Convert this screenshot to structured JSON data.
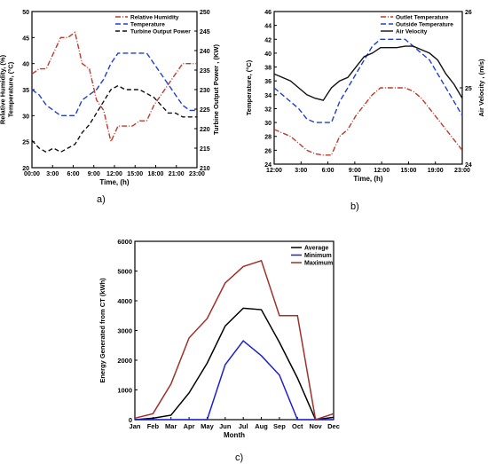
{
  "chart_data": [
    {
      "type": "line",
      "panel_label": "a)",
      "xlabel": "Time, (h)",
      "ylabel_left": "Relative Humidity, (%)\nTemperature, (°C)",
      "ylabel_right": "Turbine Output Power , (KW)",
      "x_ticks": [
        "00:00",
        "3:00",
        "6:00",
        "9:00",
        "12:00",
        "15:00",
        "18:00",
        "21:00",
        "23:00"
      ],
      "x": [
        0,
        1,
        2,
        3,
        4,
        5,
        6,
        7,
        8,
        9,
        10,
        11,
        12,
        13,
        14,
        15,
        16,
        17,
        18,
        19,
        20,
        21,
        22,
        23
      ],
      "ylim_left": [
        20,
        50
      ],
      "ylim_right": [
        210,
        250
      ],
      "yticks_left": [
        20,
        25,
        30,
        35,
        40,
        45,
        50
      ],
      "yticks_right": [
        210,
        215,
        220,
        225,
        230,
        235,
        240,
        245,
        250
      ],
      "series": [
        {
          "name": "Relative Humidity",
          "axis": "left",
          "color": "#c0392b",
          "dash": "6,2,1,2",
          "values": [
            38,
            39,
            39,
            42,
            45,
            45,
            46,
            40,
            39,
            33,
            31,
            25,
            28,
            28,
            28,
            29,
            29,
            32,
            34,
            36,
            38,
            40,
            40,
            40
          ]
        },
        {
          "name": "Temperature",
          "axis": "left",
          "color": "#1f3fd1",
          "dash": "6,3",
          "values": [
            35,
            34,
            32,
            31,
            30,
            30,
            30,
            33,
            34,
            35,
            37,
            40,
            42,
            42,
            42,
            42,
            42,
            40,
            38,
            36,
            34,
            32,
            31,
            31
          ]
        },
        {
          "name": "Turbine Output Power",
          "axis": "right",
          "color": "#111111",
          "dash": "5,3",
          "values": [
            217,
            215,
            214,
            215,
            214,
            215,
            216,
            219,
            221,
            224,
            227,
            230,
            231,
            230,
            230,
            230,
            229,
            228,
            226,
            224,
            224,
            223,
            223,
            223
          ]
        }
      ],
      "legend_position": "top-right"
    },
    {
      "type": "line",
      "panel_label": "b)",
      "xlabel": "Time, (h)",
      "ylabel_left": "Temperature, (°C)",
      "ylabel_right": "Air Velocity , (m/s)",
      "x_ticks": [
        "12:00",
        "3:00",
        "6:00",
        "9:00",
        "12:00",
        "15:00",
        "19:00",
        "23:00"
      ],
      "x": [
        0,
        1,
        2,
        3,
        4,
        5,
        6,
        7,
        8,
        9,
        10,
        11,
        12,
        13,
        14,
        15,
        16,
        17,
        18,
        19,
        20,
        21,
        22,
        23
      ],
      "ylim_left": [
        24,
        46
      ],
      "yticks_left": [
        24,
        26,
        28,
        30,
        32,
        34,
        36,
        38,
        40,
        42,
        44,
        46
      ],
      "ylim_right": [
        24,
        26
      ],
      "yticks_right": [
        24,
        25,
        26
      ],
      "series": [
        {
          "name": "Outlet Temperature",
          "axis": "left",
          "color": "#c0392b",
          "dash": "6,2,1,2",
          "values": [
            29,
            28.5,
            28,
            27,
            26,
            25.5,
            25.3,
            25.3,
            28,
            29,
            31,
            32.5,
            34,
            35,
            35,
            35,
            35,
            34.5,
            33.5,
            32,
            30.5,
            29,
            27.5,
            26
          ]
        },
        {
          "name": "Outside Temperature",
          "axis": "left",
          "color": "#1f3fd1",
          "dash": "6,3",
          "values": [
            35,
            34,
            33,
            32,
            30.5,
            30,
            30,
            30,
            33,
            35,
            37,
            39,
            41,
            42,
            42,
            42,
            42,
            41,
            40,
            39,
            37,
            35,
            33,
            31
          ]
        },
        {
          "name": "Air Velocity",
          "axis": "left",
          "color": "#111111",
          "dash": "",
          "values": [
            37,
            36.5,
            36,
            35,
            34,
            33.5,
            33.2,
            35,
            36,
            36.5,
            38,
            39.5,
            40,
            40.8,
            40.8,
            40.8,
            41,
            41,
            40.5,
            40,
            39,
            37,
            35.5,
            33.5
          ]
        }
      ],
      "legend_position": "top-right"
    },
    {
      "type": "line",
      "panel_label": "c)",
      "xlabel": "Month",
      "ylabel": "Energy Generated from CT (kWh)",
      "categories": [
        "Jan",
        "Feb",
        "Mar",
        "Apr",
        "May",
        "Jun",
        "Jul",
        "Aug",
        "Sep",
        "Oct",
        "Nov",
        "Dec"
      ],
      "ylim": [
        0,
        6000
      ],
      "yticks": [
        0,
        1000,
        2000,
        3000,
        4000,
        5000,
        6000
      ],
      "series": [
        {
          "name": "Average",
          "color": "#000000",
          "values": [
            0,
            50,
            150,
            900,
            1900,
            3150,
            3750,
            3700,
            2600,
            1400,
            0,
            80
          ]
        },
        {
          "name": "Minimum",
          "color": "#1f1fd1",
          "values": [
            0,
            0,
            0,
            0,
            0,
            1850,
            2650,
            2150,
            1500,
            0,
            0,
            0
          ]
        },
        {
          "name": "Maximum",
          "color": "#a0302a",
          "values": [
            50,
            200,
            1200,
            2750,
            3400,
            4600,
            5150,
            5350,
            3500,
            3500,
            0,
            200
          ]
        }
      ],
      "legend_position": "top-right"
    }
  ]
}
